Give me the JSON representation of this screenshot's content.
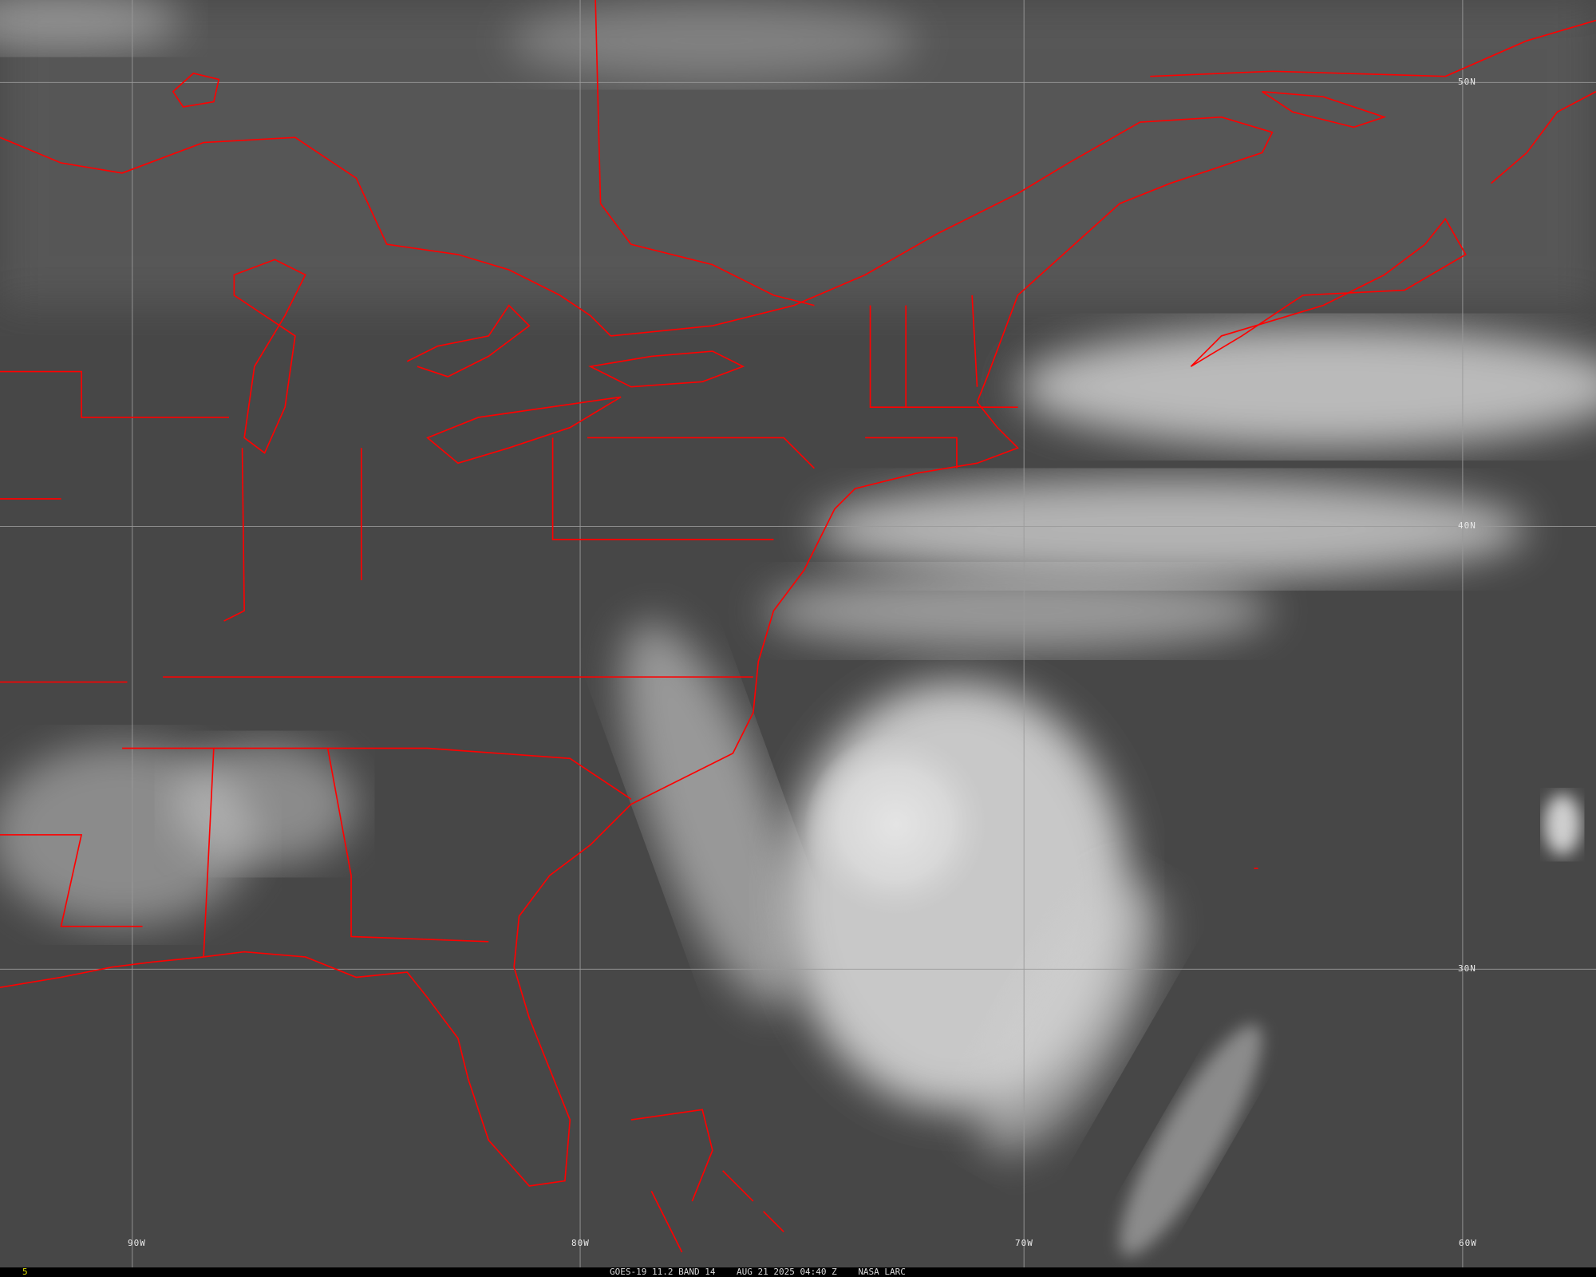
{
  "map": {
    "satellite": "GOES-19",
    "channel": "11.2 BAND 14",
    "datetime": "AUG 21 2025 04:40 Z",
    "credit": "NASA LARC",
    "frame_number": "5",
    "longitude_labels": [
      "90W",
      "80W",
      "70W",
      "60W"
    ],
    "latitude_labels": [
      "50N",
      "40N",
      "30N"
    ],
    "border_color": "#ff0000",
    "gridline_color": "#9a9a9a",
    "caption_color": "#dddddd",
    "frame_number_color": "#e0e000"
  }
}
